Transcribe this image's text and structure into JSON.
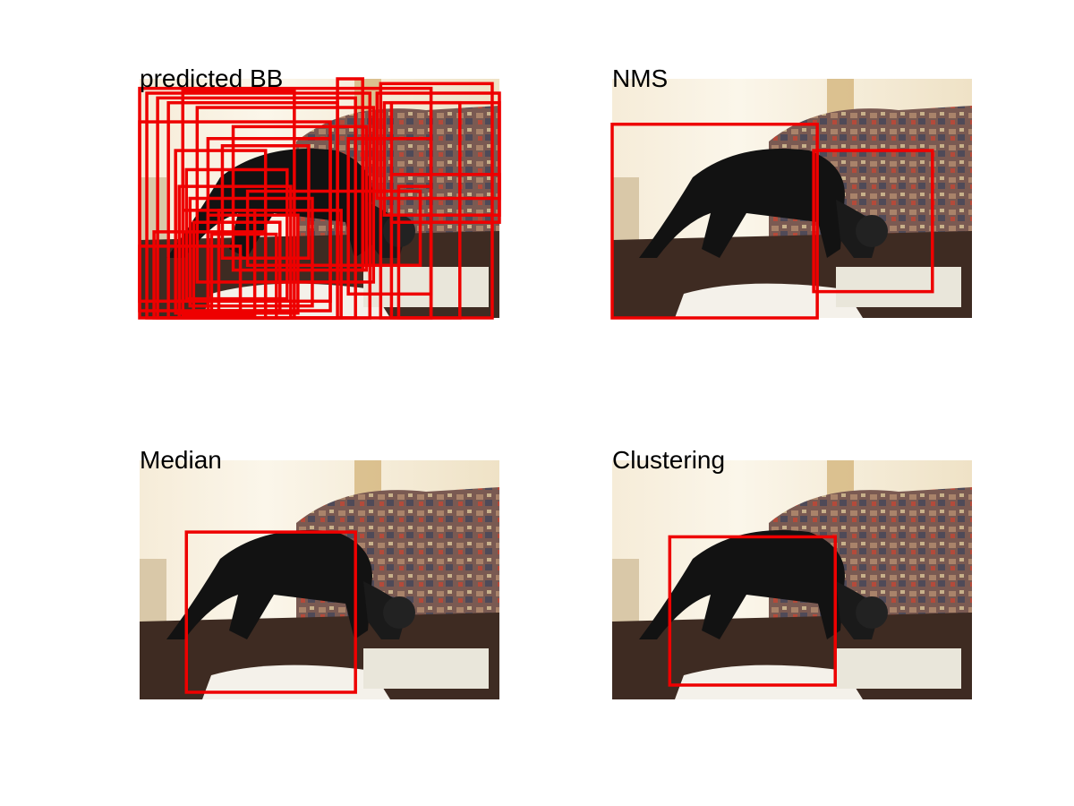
{
  "box_color": "#ee0000",
  "panels": [
    {
      "title": "predicted BB",
      "image_description": "black cat on a table in front of a patterned sofa",
      "boxes": [
        [
          0,
          0.04,
          0.81,
          1.0
        ],
        [
          0.02,
          0.06,
          0.64,
          1.0
        ],
        [
          0.05,
          0.08,
          0.6,
          1.0
        ],
        [
          0.08,
          0.1,
          0.55,
          1.0
        ],
        [
          0.12,
          0.05,
          0.43,
          1.0
        ],
        [
          0.16,
          0.12,
          0.65,
          0.85
        ],
        [
          0.19,
          0.25,
          0.53,
          0.97
        ],
        [
          0.23,
          0.28,
          0.47,
          0.75
        ],
        [
          0.1,
          0.3,
          0.35,
          0.98
        ],
        [
          0.13,
          0.38,
          0.41,
          0.92
        ],
        [
          0.11,
          0.45,
          0.42,
          1.0
        ],
        [
          0.14,
          0.5,
          0.48,
          0.95
        ],
        [
          0.12,
          0.55,
          0.32,
          0.99
        ],
        [
          0.15,
          0.6,
          0.39,
          0.97
        ],
        [
          0.19,
          0.57,
          0.44,
          0.98
        ],
        [
          0.2,
          0.65,
          0.38,
          1.0
        ],
        [
          0.04,
          0.64,
          0.35,
          1.0
        ],
        [
          0.0,
          0.7,
          0.28,
          0.97
        ],
        [
          0.22,
          0.55,
          0.56,
          1.0
        ],
        [
          0.26,
          0.2,
          0.63,
          0.8
        ],
        [
          0.67,
          0.02,
          0.98,
          1.0
        ],
        [
          0.7,
          0.1,
          0.89,
          1.0
        ],
        [
          0.72,
          0.45,
          0.81,
          1.0
        ],
        [
          0.58,
          0.25,
          0.81,
          0.9
        ],
        [
          0.66,
          0.06,
          1.0,
          0.5
        ],
        [
          0.68,
          0.1,
          1.0,
          0.57
        ],
        [
          0.7,
          0.4,
          1.0,
          0.6
        ],
        [
          0.55,
          0.0,
          0.62,
          0.8
        ],
        [
          0.0,
          0.18,
          0.53,
          0.93
        ],
        [
          0.3,
          0.47,
          0.78,
          0.78
        ]
      ]
    },
    {
      "title": "NMS",
      "image_description": "black cat on a table in front of a patterned sofa",
      "boxes": [
        [
          0,
          0.19,
          0.57,
          1.0
        ],
        [
          0.56,
          0.3,
          0.89,
          0.89
        ]
      ]
    },
    {
      "title": "Median",
      "image_description": "black cat on a table in front of a patterned sofa",
      "boxes": [
        [
          0.13,
          0.3,
          0.6,
          0.97
        ]
      ]
    },
    {
      "title": "Clustering",
      "image_description": "black cat on a table in front of a patterned sofa",
      "boxes": [
        [
          0.16,
          0.32,
          0.62,
          0.94
        ]
      ]
    }
  ]
}
